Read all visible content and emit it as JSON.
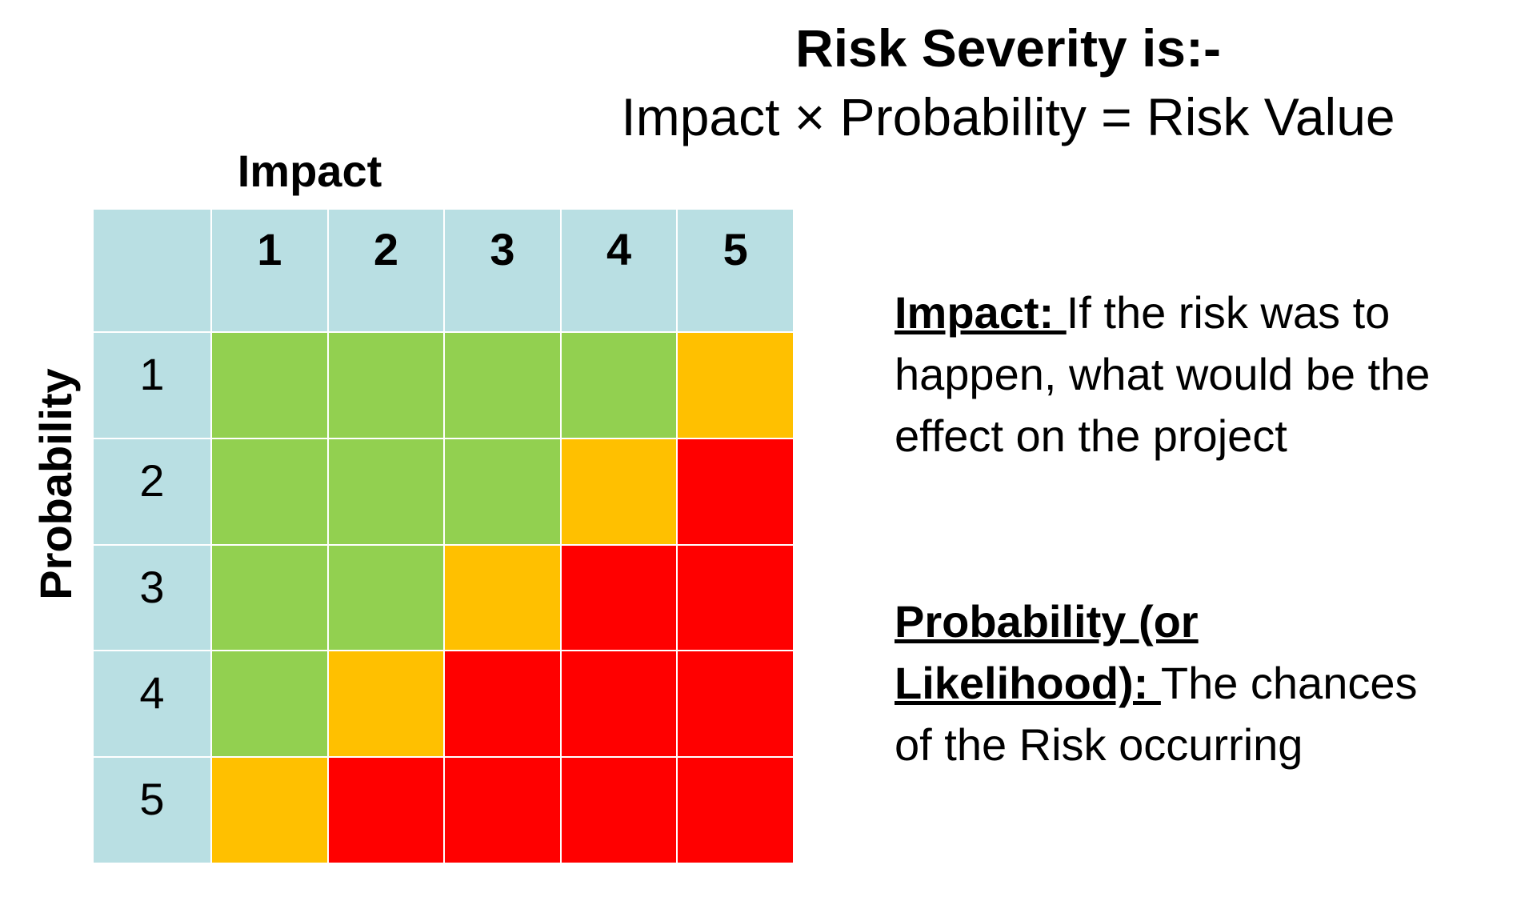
{
  "title": {
    "line1": "Risk Severity is:-",
    "line2": "Impact × Probability = Risk Value"
  },
  "axes": {
    "impact_label": "Impact",
    "probability_label": "Probability"
  },
  "matrix": {
    "columns": [
      "1",
      "2",
      "3",
      "4",
      "5"
    ],
    "rows": [
      "1",
      "2",
      "3",
      "4",
      "5"
    ],
    "cell_levels": [
      [
        "low",
        "low",
        "low",
        "low",
        "medium"
      ],
      [
        "low",
        "low",
        "low",
        "medium",
        "high"
      ],
      [
        "low",
        "low",
        "medium",
        "high",
        "high"
      ],
      [
        "low",
        "medium",
        "high",
        "high",
        "high"
      ],
      [
        "medium",
        "high",
        "high",
        "high",
        "high"
      ]
    ],
    "colors": {
      "header": "#b9dfe3",
      "low": "#92d050",
      "medium": "#ffc000",
      "high": "#ff0000"
    }
  },
  "definitions": {
    "impact": {
      "term": "Impact: ",
      "text": "If the risk was to happen, what would be the effect on the project"
    },
    "probability": {
      "term": "Probability (or Likelihood): ",
      "text": "The chances of the Risk occurring"
    }
  }
}
